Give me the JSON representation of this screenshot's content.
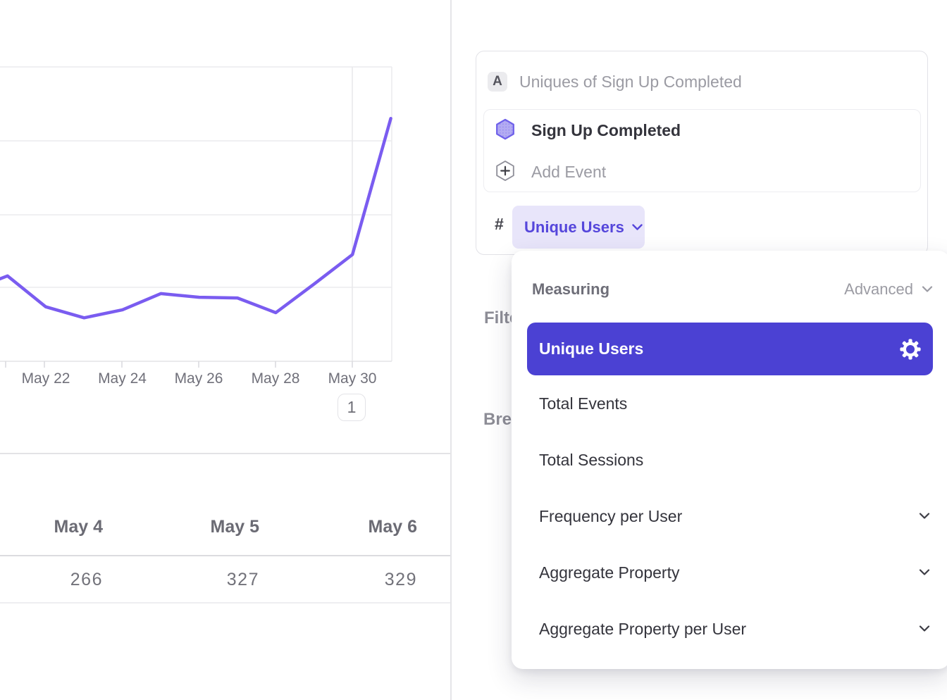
{
  "chart_data": {
    "type": "line",
    "title": "Uniques of Sign Up Completed",
    "x_tick_labels": [
      "May 22",
      "May 24",
      "May 26",
      "May 28",
      "May 30"
    ],
    "xlabel": "",
    "ylabel": "",
    "y_axis_labels_visible": false,
    "ylim": [
      0,
      400
    ],
    "grid": true,
    "legend": "none",
    "annotation": {
      "label": "1",
      "x_day": 30
    },
    "series": [
      {
        "name": "Sign Up Completed — Unique Users",
        "color": "#7a5cf0",
        "days": [
          20.8,
          21,
          22,
          23,
          24,
          25,
          26,
          27,
          28,
          29,
          30,
          31
        ],
        "values": [
          112,
          116,
          74,
          59,
          70,
          92,
          87,
          86,
          66,
          105,
          145,
          330
        ]
      }
    ]
  },
  "left_pane": {
    "table": {
      "columns": [
        "May 4",
        "May 5",
        "May 6"
      ],
      "values": [
        "266",
        "327",
        "329"
      ]
    }
  },
  "query_builder": {
    "formula_badge": "A",
    "title": "Uniques of Sign Up Completed",
    "event": {
      "name": "Sign Up Completed",
      "icon": "hexagon-event-icon"
    },
    "add_event_label": "Add Event",
    "metric_prefix": "#",
    "metric_selector": {
      "value": "Unique Users"
    }
  },
  "sections": {
    "filter_label": "Filter",
    "breakdown_label": "Breakdown"
  },
  "measurement_dropdown": {
    "header_label": "Measuring",
    "mode_label": "Advanced",
    "items": [
      {
        "label": "Unique Users",
        "selected": true,
        "gear": true
      },
      {
        "label": "Total Events"
      },
      {
        "label": "Total Sessions"
      },
      {
        "label": "Frequency per User",
        "expandable": true
      },
      {
        "label": "Aggregate Property",
        "expandable": true
      },
      {
        "label": "Aggregate Property per User",
        "expandable": true
      }
    ]
  },
  "colors": {
    "accent_selected": "#4b41d3",
    "line": "#7a5cf0",
    "pill_bg": "#e8e5fa",
    "pill_text": "#5546db",
    "hexagon_fill": "#b3abf2",
    "hexagon_stroke": "#6f61ea",
    "gridline": "#ececee",
    "muted_text": "#9b9ba3"
  }
}
